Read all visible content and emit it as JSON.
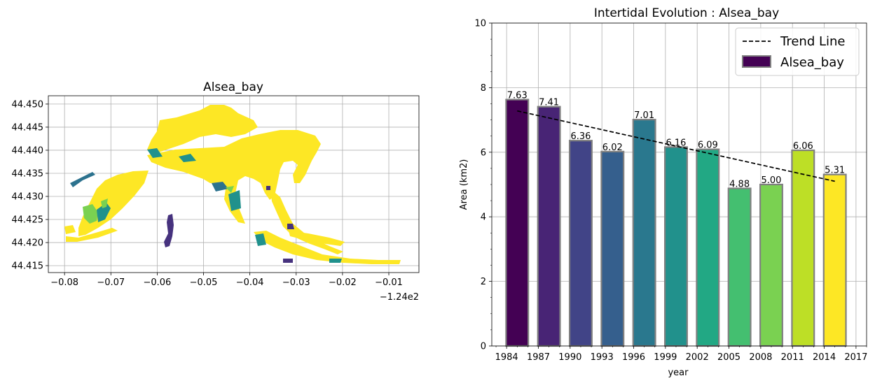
{
  "chart_data": [
    {
      "type": "heatmap",
      "title": "Alsea_bay",
      "xlabel": "",
      "ylabel": "",
      "x_offset_label": "−1.24e2",
      "xlim": [
        -0.0835,
        -0.0035
      ],
      "ylim": [
        44.4135,
        44.4518
      ],
      "x_ticks": [
        -0.08,
        -0.07,
        -0.06,
        -0.05,
        -0.04,
        -0.03,
        -0.02,
        -0.01
      ],
      "x_tick_labels": [
        "−0.08",
        "−0.07",
        "−0.06",
        "−0.05",
        "−0.04",
        "−0.03",
        "−0.02",
        "−0.01"
      ],
      "y_ticks": [
        44.415,
        44.42,
        44.425,
        44.43,
        44.435,
        44.44,
        44.445,
        44.45
      ],
      "y_tick_labels": [
        "44.415",
        "44.420",
        "44.425",
        "44.430",
        "44.435",
        "44.440",
        "44.445",
        "44.450"
      ],
      "grid": true,
      "colors": {
        "dominant": "#fde725",
        "green": "#7ad151",
        "teal": "#21918c",
        "dark_teal": "#2c728e",
        "purple": "#46327e"
      }
    },
    {
      "type": "bar",
      "title": "Intertidal Evolution : Alsea_bay",
      "xlabel": "year",
      "ylabel": "Area (km2)",
      "x": [
        1985,
        1988,
        1991,
        1994,
        1997,
        2000,
        2003,
        2006,
        2009,
        2012,
        2015
      ],
      "values": [
        7.63,
        7.41,
        6.36,
        6.02,
        7.01,
        6.16,
        6.09,
        4.88,
        5.0,
        6.06,
        5.31
      ],
      "value_labels": [
        "7.63",
        "7.41",
        "6.36",
        "6.02",
        "7.01",
        "6.16",
        "6.09",
        "4.88",
        "5.00",
        "6.06",
        "5.31"
      ],
      "bar_colors": [
        "#440154",
        "#482475",
        "#414487",
        "#355f8d",
        "#2a788e",
        "#21918c",
        "#22a884",
        "#44bf70",
        "#7ad151",
        "#bddf26",
        "#fde725"
      ],
      "bar_edge_color": "#808080",
      "x_ticks": [
        1984,
        1987,
        1990,
        1993,
        1996,
        1999,
        2002,
        2005,
        2008,
        2011,
        2014,
        2017
      ],
      "x_tick_labels": [
        "1984",
        "1987",
        "1990",
        "1993",
        "1996",
        "1999",
        "2002",
        "2005",
        "2008",
        "2011",
        "2014",
        "2017"
      ],
      "xlim": [
        1982.6,
        2018.0
      ],
      "y_ticks": [
        0,
        2,
        4,
        6,
        8,
        10
      ],
      "y_tick_labels": [
        "0",
        "2",
        "4",
        "6",
        "8",
        "10"
      ],
      "ylim": [
        0,
        10
      ],
      "trend": {
        "x": [
          1985,
          2015
        ],
        "y": [
          7.28,
          5.1
        ],
        "style": "dashed",
        "color": "#000000"
      },
      "legend": {
        "placement": "top-right",
        "entries": [
          {
            "label": "Trend Line",
            "kind": "line"
          },
          {
            "label": "Alsea_bay",
            "kind": "patch",
            "color": "#440154"
          }
        ]
      },
      "grid": true
    }
  ]
}
